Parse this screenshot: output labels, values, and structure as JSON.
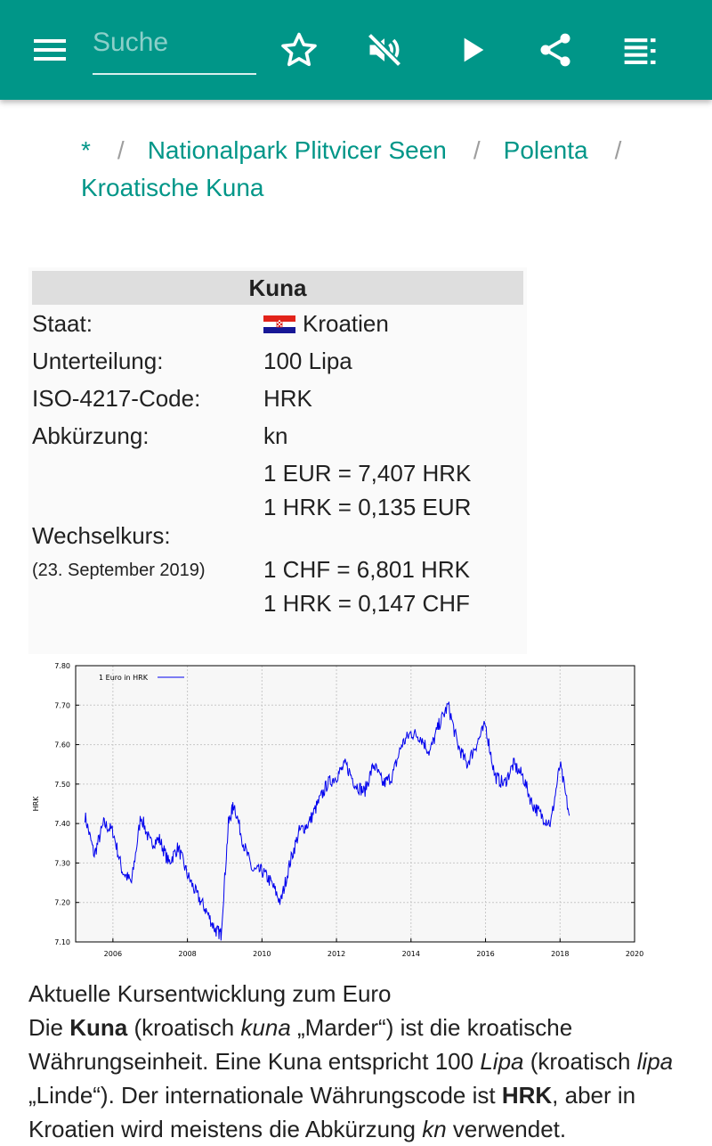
{
  "appbar": {
    "search_placeholder": "Suche",
    "icons": [
      "menu-icon",
      "star-outline-icon",
      "volume-off-icon",
      "play-icon",
      "share-icon",
      "playlist-icon"
    ],
    "color": "#009688"
  },
  "breadcrumb": {
    "items": [
      "*",
      "Nationalpark Plitvicer Seen",
      "Polenta",
      "Kroatische Kuna"
    ],
    "separator": "/"
  },
  "infobox": {
    "title": "Kuna",
    "rows": {
      "staat_label": "Staat:",
      "staat_value": "Kroatien",
      "unterteilung_label": "Unterteilung:",
      "unterteilung_value": "100 Lipa",
      "iso_label": "ISO-4217-Code:",
      "iso_value": "HRK",
      "abk_label": "Abkürzung:",
      "abk_value": "kn",
      "wechselkurs_label": "Wechselkurs:",
      "wechselkurs_date": "(23. September 2019)",
      "rate_1": "1 EUR = 7,407 HRK",
      "rate_2": "1 HRK = 0,135 EUR",
      "rate_3": "1 CHF = 6,801 HRK",
      "rate_4": "1 HRK = 0,147 CHF"
    }
  },
  "chart_data": {
    "type": "line",
    "title": "",
    "xlabel": "",
    "ylabel": "HRK",
    "xlim": [
      2005,
      2020
    ],
    "ylim": [
      7.1,
      7.8
    ],
    "x_ticks": [
      "2006",
      "2008",
      "2010",
      "2012",
      "2014",
      "2016",
      "2018",
      "2020"
    ],
    "y_ticks": [
      "7.80",
      "7.70",
      "7.60",
      "7.50",
      "7.40",
      "7.30",
      "7.20",
      "7.10"
    ],
    "grid": true,
    "legend_position": "top-left",
    "series": [
      {
        "name": "1 Euro in HRK",
        "color": "#0000ee",
        "x": [
          2005.25,
          2005.5,
          2005.75,
          2006.0,
          2006.25,
          2006.5,
          2006.75,
          2007.0,
          2007.25,
          2007.5,
          2007.75,
          2008.0,
          2008.25,
          2008.5,
          2008.75,
          2008.9,
          2009.1,
          2009.25,
          2009.5,
          2009.75,
          2010.0,
          2010.25,
          2010.5,
          2010.75,
          2011.0,
          2011.25,
          2011.5,
          2011.75,
          2012.0,
          2012.25,
          2012.5,
          2012.75,
          2013.0,
          2013.25,
          2013.5,
          2013.75,
          2014.0,
          2014.25,
          2014.5,
          2014.75,
          2015.0,
          2015.25,
          2015.5,
          2015.75,
          2016.0,
          2016.25,
          2016.5,
          2016.75,
          2017.0,
          2017.25,
          2017.5,
          2017.75,
          2018.0,
          2018.25
        ],
        "values": [
          7.42,
          7.32,
          7.4,
          7.38,
          7.28,
          7.25,
          7.42,
          7.35,
          7.36,
          7.3,
          7.34,
          7.27,
          7.22,
          7.18,
          7.13,
          7.12,
          7.4,
          7.45,
          7.35,
          7.28,
          7.28,
          7.25,
          7.2,
          7.3,
          7.38,
          7.4,
          7.45,
          7.5,
          7.52,
          7.55,
          7.5,
          7.48,
          7.55,
          7.5,
          7.52,
          7.6,
          7.63,
          7.62,
          7.58,
          7.65,
          7.7,
          7.6,
          7.55,
          7.6,
          7.65,
          7.52,
          7.5,
          7.55,
          7.52,
          7.45,
          7.42,
          7.4,
          7.55,
          7.42
        ]
      }
    ]
  },
  "article": {
    "caption": "Aktuelle Kursentwicklung zum Euro",
    "p1_a": "Die ",
    "p1_kuna": "Kuna",
    "p1_b": " (kroatisch ",
    "p1_kuna_it": "kuna",
    "p1_c": " „Marder“) ist die kroatische Währungseinheit. Eine Kuna entspricht 100 ",
    "p1_lipa": "Lipa",
    "p1_d": " (kroatisch ",
    "p1_lipa_it": "lipa",
    "p1_e": " „Linde“). Der internationale Währungscode ist ",
    "p1_hrk": "HRK",
    "p1_f": ", aber in Kroatien wird meistens die Abkürzung ",
    "p1_kn": "kn",
    "p1_g": " verwendet."
  }
}
